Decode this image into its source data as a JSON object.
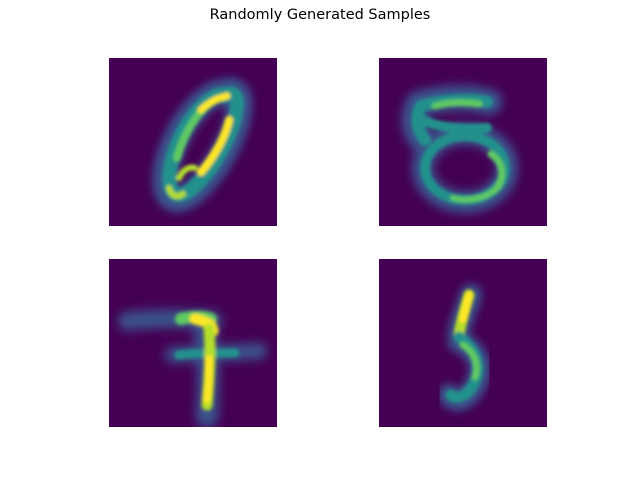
{
  "figure": {
    "title": "Randomly Generated Samples"
  },
  "colors": {
    "background": "#440154",
    "low": "#3b528b",
    "mid": "#21918c",
    "high": "#5ec962",
    "peak": "#fde725"
  },
  "samples": [
    {
      "digit": "0"
    },
    {
      "digit": "5"
    },
    {
      "digit": "7"
    },
    {
      "digit": "5"
    }
  ]
}
